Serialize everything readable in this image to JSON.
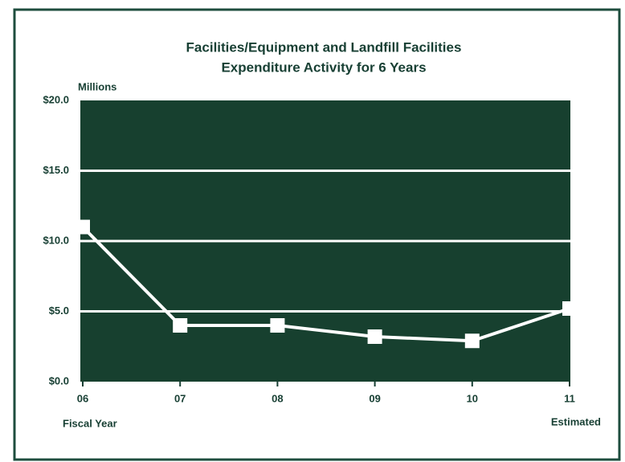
{
  "chart_data": {
    "type": "line",
    "title": [
      "Facilities/Equipment and Landfill Facilities",
      "Expenditure Activity for 6 Years"
    ],
    "y_axis_label": "Millions",
    "x_axis_label": "Fiscal Year",
    "annotation": "Estimated",
    "categories": [
      "06",
      "07",
      "08",
      "09",
      "10",
      "11"
    ],
    "series": [
      {
        "name": "Expenditure",
        "color": "#ffffff",
        "values": [
          11.0,
          4.0,
          4.0,
          3.2,
          2.9,
          5.2
        ]
      }
    ],
    "ylim": [
      0,
      20
    ],
    "yticks": [
      {
        "value": 0,
        "label": "$0.0"
      },
      {
        "value": 5,
        "label": "$5.0"
      },
      {
        "value": 10,
        "label": "$10.0"
      },
      {
        "value": 15,
        "label": "$15.0"
      },
      {
        "value": 20,
        "label": "$20.0"
      }
    ],
    "grid": true,
    "plot_background": "#17402f"
  }
}
